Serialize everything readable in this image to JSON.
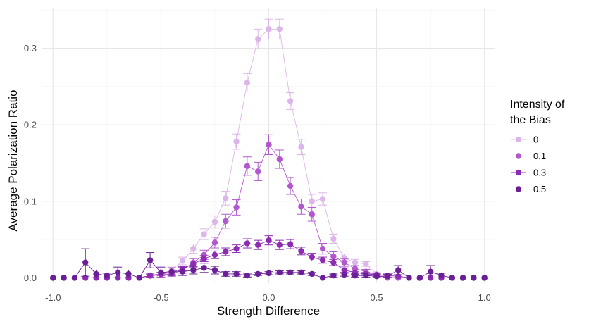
{
  "chart_data": {
    "type": "line",
    "xlabel": "Strength Difference",
    "ylabel": "Average Polarization Ratio",
    "xlim": [
      -1.05,
      1.05
    ],
    "ylim": [
      -0.007,
      0.352
    ],
    "xticks": [
      -1.0,
      -0.5,
      0.0,
      0.5,
      1.0
    ],
    "xtick_labels": [
      "-1.0",
      "-0.5",
      "0.0",
      "0.5",
      "1.0"
    ],
    "yticks": [
      0.0,
      0.1,
      0.2,
      0.3
    ],
    "ytick_labels": [
      "0.0",
      "0.1",
      "0.2",
      "0.3"
    ],
    "grid": true,
    "error_bars": true,
    "legend": {
      "title_lines": [
        "Intensity of",
        "the Bias"
      ],
      "position": "right"
    },
    "x": [
      -1.0,
      -0.95,
      -0.9,
      -0.85,
      -0.8,
      -0.75,
      -0.7,
      -0.65,
      -0.6,
      -0.55,
      -0.5,
      -0.45,
      -0.4,
      -0.35,
      -0.3,
      -0.25,
      -0.2,
      -0.15,
      -0.1,
      -0.05,
      0.0,
      0.05,
      0.1,
      0.15,
      0.2,
      0.25,
      0.3,
      0.35,
      0.4,
      0.45,
      0.5,
      0.55,
      0.6,
      0.65,
      0.7,
      0.75,
      0.8,
      0.85,
      0.9,
      0.95,
      1.0
    ],
    "series": [
      {
        "name": "0",
        "color": "#dcb6e8",
        "values": [
          0,
          0,
          0,
          0,
          0,
          0,
          0,
          0,
          0,
          0.002,
          0.004,
          0.01,
          0.022,
          0.038,
          0.057,
          0.073,
          0.104,
          0.178,
          0.255,
          0.312,
          0.325,
          0.325,
          0.231,
          0.171,
          0.1,
          0.103,
          0.051,
          0.026,
          0.02,
          0.018,
          0.005,
          0.002,
          0,
          0,
          0,
          0,
          0,
          0,
          0,
          0,
          0
        ],
        "errors": [
          0,
          0,
          0,
          0,
          0,
          0,
          0,
          0,
          0,
          0.002,
          0.003,
          0.004,
          0.005,
          0.006,
          0.007,
          0.008,
          0.009,
          0.01,
          0.012,
          0.013,
          0.013,
          0.013,
          0.011,
          0.01,
          0.009,
          0.008,
          0.006,
          0.005,
          0.004,
          0.003,
          0.002,
          0.002,
          0,
          0,
          0,
          0,
          0,
          0,
          0,
          0,
          0
        ]
      },
      {
        "name": "0.1",
        "color": "#b058cc",
        "values": [
          0,
          0,
          0,
          0,
          0,
          0,
          0,
          0,
          0,
          0.003,
          0.004,
          0.005,
          0.01,
          0.02,
          0.03,
          0.046,
          0.074,
          0.092,
          0.146,
          0.139,
          0.174,
          0.155,
          0.12,
          0.093,
          0.083,
          0.038,
          0.028,
          0.02,
          0.012,
          0.008,
          0.003,
          0,
          0,
          0,
          0,
          0,
          0,
          0,
          0,
          0,
          0
        ],
        "errors": [
          0,
          0,
          0,
          0,
          0,
          0,
          0,
          0,
          0,
          0.002,
          0.003,
          0.003,
          0.004,
          0.005,
          0.006,
          0.007,
          0.009,
          0.01,
          0.012,
          0.012,
          0.013,
          0.012,
          0.011,
          0.01,
          0.009,
          0.007,
          0.006,
          0.005,
          0.004,
          0.003,
          0.002,
          0,
          0,
          0,
          0,
          0,
          0,
          0,
          0,
          0,
          0
        ]
      },
      {
        "name": "0.3",
        "color": "#8d2cb2",
        "values": [
          0,
          0,
          0,
          0,
          0,
          0,
          0,
          0,
          0,
          0.003,
          0.005,
          0.007,
          0.012,
          0.018,
          0.025,
          0.03,
          0.034,
          0.038,
          0.045,
          0.043,
          0.049,
          0.043,
          0.044,
          0.035,
          0.027,
          0.023,
          0.02,
          0.01,
          0.007,
          0.005,
          0.004,
          0.003,
          0.002,
          0,
          0,
          0,
          0,
          0,
          0,
          0,
          0
        ],
        "errors": [
          0,
          0,
          0,
          0,
          0,
          0,
          0,
          0,
          0,
          0.002,
          0.002,
          0.003,
          0.003,
          0.004,
          0.004,
          0.005,
          0.005,
          0.005,
          0.006,
          0.006,
          0.006,
          0.006,
          0.006,
          0.005,
          0.005,
          0.004,
          0.004,
          0.003,
          0.003,
          0.002,
          0.002,
          0.002,
          0.002,
          0,
          0,
          0,
          0,
          0,
          0,
          0,
          0
        ]
      },
      {
        "name": "0.5",
        "color": "#6a1f96",
        "values": [
          0,
          0,
          0,
          0.02,
          0.005,
          0.003,
          0.007,
          0.005,
          0,
          0.023,
          0.007,
          0.008,
          0.008,
          0.01,
          0.013,
          0.01,
          0.005,
          0.005,
          0.003,
          0.005,
          0.006,
          0.007,
          0.007,
          0.007,
          0.005,
          0,
          0.003,
          0.004,
          0.003,
          0.003,
          0.002,
          0.002,
          0.01,
          0,
          0,
          0.008,
          0.003,
          0,
          0,
          0,
          0
        ],
        "errors": [
          0,
          0,
          0,
          0.018,
          0.005,
          0.003,
          0.007,
          0.005,
          0,
          0.01,
          0.007,
          0.005,
          0.005,
          0.005,
          0.006,
          0.005,
          0.003,
          0.003,
          0.002,
          0.002,
          0.002,
          0.002,
          0.002,
          0.002,
          0.002,
          0,
          0.002,
          0.002,
          0.002,
          0.002,
          0.002,
          0.002,
          0.006,
          0,
          0,
          0.008,
          0.003,
          0,
          0,
          0,
          0
        ]
      }
    ]
  }
}
